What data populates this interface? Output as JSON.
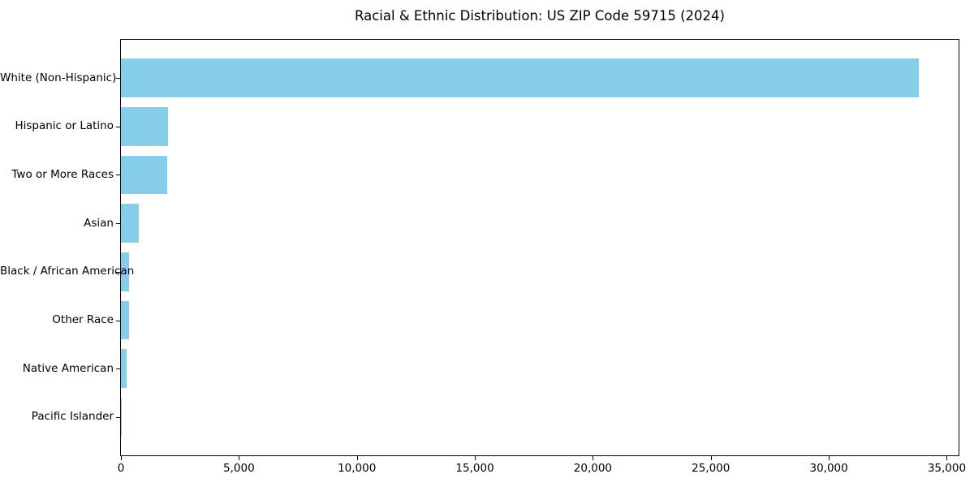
{
  "title": "Racial & Ethnic Distribution: US ZIP Code 59715 (2024)",
  "chart_data": {
    "type": "bar",
    "orientation": "horizontal",
    "title": "Racial & Ethnic Distribution: US ZIP Code 59715 (2024)",
    "categories": [
      "White (Non-Hispanic)",
      "Hispanic or Latino",
      "Two or More Races",
      "Asian",
      "Black / African American",
      "Other Race",
      "Native American",
      "Pacific Islander"
    ],
    "values": [
      33800,
      2000,
      1960,
      740,
      350,
      340,
      250,
      15
    ],
    "xlabel": "",
    "ylabel": "",
    "xlim": [
      0,
      35500
    ],
    "x_ticks": [
      0,
      5000,
      10000,
      15000,
      20000,
      25000,
      30000,
      35000
    ],
    "x_tick_labels": [
      "0",
      "5,000",
      "10,000",
      "15,000",
      "20,000",
      "25,000",
      "30,000",
      "35,000"
    ],
    "bar_color": "#87CEEB",
    "axis_color": "#000000",
    "text_color": "#000000",
    "background_color": "#FFFFFF",
    "grid": false,
    "legend": false
  }
}
